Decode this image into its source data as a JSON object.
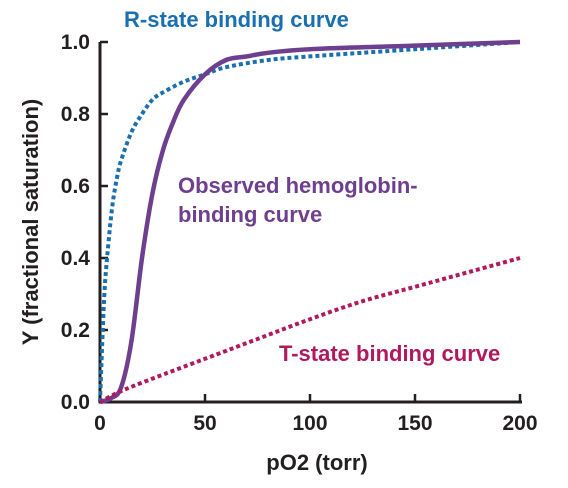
{
  "chart_data": {
    "type": "line",
    "title": "",
    "xlabel": "pO2 (torr)",
    "ylabel": "Y (fractional saturation)",
    "xlim": [
      0,
      200
    ],
    "ylim": [
      0,
      1.0
    ],
    "x_ticks": [
      "0",
      "50",
      "100",
      "150",
      "200"
    ],
    "y_ticks": [
      "0.0",
      "0.2",
      "0.4",
      "0.6",
      "0.8",
      "1.0"
    ],
    "grid": false,
    "legend": "none (series labeled inline)",
    "series": [
      {
        "name": "R-state binding curve",
        "style": "dotted",
        "color": "#1a6fae",
        "x": [
          0,
          2,
          4,
          6,
          8,
          10,
          15,
          20,
          25,
          30,
          40,
          50,
          60,
          80,
          100,
          150,
          200
        ],
        "y": [
          0.0,
          0.29,
          0.44,
          0.55,
          0.62,
          0.67,
          0.75,
          0.8,
          0.84,
          0.86,
          0.89,
          0.91,
          0.93,
          0.95,
          0.96,
          0.98,
          1.0
        ]
      },
      {
        "name": "Observed hemoglobin-binding curve",
        "style": "solid",
        "color": "#6f3f8f",
        "x": [
          0,
          5,
          10,
          15,
          20,
          25,
          30,
          35,
          40,
          50,
          60,
          70,
          80,
          100,
          150,
          200
        ],
        "y": [
          0.0,
          0.01,
          0.04,
          0.17,
          0.4,
          0.58,
          0.7,
          0.78,
          0.84,
          0.91,
          0.95,
          0.96,
          0.97,
          0.98,
          0.99,
          1.0
        ]
      },
      {
        "name": "T-state binding curve",
        "style": "dotted",
        "color": "#b0195d",
        "x": [
          0,
          10,
          25,
          50,
          75,
          100,
          125,
          150,
          175,
          200
        ],
        "y": [
          0.0,
          0.03,
          0.065,
          0.12,
          0.175,
          0.23,
          0.28,
          0.32,
          0.36,
          0.4
        ]
      }
    ],
    "annotations": [
      {
        "text": "R-state binding curve",
        "color": "#1a6fae"
      },
      {
        "text": "Observed hemoglobin-",
        "color": "#6f3f8f"
      },
      {
        "text": "binding curve",
        "color": "#6f3f8f"
      },
      {
        "text": "T-state binding curve",
        "color": "#b0195d"
      }
    ]
  }
}
